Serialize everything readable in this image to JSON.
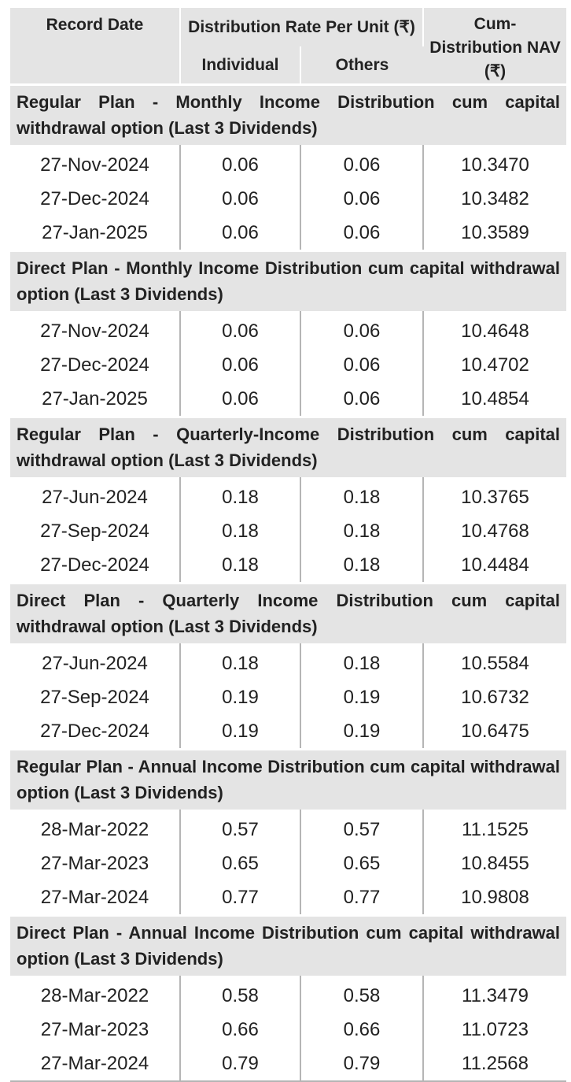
{
  "header": {
    "record_date": "Record Date",
    "rate": "Distribution Rate Per Unit (₹)",
    "individual": "Individual",
    "others": "Others",
    "nav": "Cum-Distribution NAV (₹)"
  },
  "sections": [
    {
      "title": "Regular Plan - Monthly Income Distribution cum capital withdrawal option (Last 3 Dividends)",
      "rows": [
        {
          "date": "27-Nov-2024",
          "individual": "0.06",
          "others": "0.06",
          "nav": "10.3470"
        },
        {
          "date": "27-Dec-2024",
          "individual": "0.06",
          "others": "0.06",
          "nav": "10.3482"
        },
        {
          "date": "27-Jan-2025",
          "individual": "0.06",
          "others": "0.06",
          "nav": "10.3589"
        }
      ]
    },
    {
      "title": "Direct Plan - Monthly Income Distribution cum capital withdrawal option (Last 3 Dividends)",
      "rows": [
        {
          "date": "27-Nov-2024",
          "individual": "0.06",
          "others": "0.06",
          "nav": "10.4648"
        },
        {
          "date": "27-Dec-2024",
          "individual": "0.06",
          "others": "0.06",
          "nav": "10.4702"
        },
        {
          "date": "27-Jan-2025",
          "individual": "0.06",
          "others": "0.06",
          "nav": "10.4854"
        }
      ]
    },
    {
      "title": "Regular Plan - Quarterly-Income Distribution cum capital withdrawal option (Last 3 Dividends)",
      "rows": [
        {
          "date": "27-Jun-2024",
          "individual": "0.18",
          "others": "0.18",
          "nav": "10.3765"
        },
        {
          "date": "27-Sep-2024",
          "individual": "0.18",
          "others": "0.18",
          "nav": "10.4768"
        },
        {
          "date": "27-Dec-2024",
          "individual": "0.18",
          "others": "0.18",
          "nav": "10.4484"
        }
      ]
    },
    {
      "title": "Direct Plan - Quarterly Income Distribution cum capital withdrawal option (Last 3 Dividends)",
      "rows": [
        {
          "date": "27-Jun-2024",
          "individual": "0.18",
          "others": "0.18",
          "nav": "10.5584"
        },
        {
          "date": "27-Sep-2024",
          "individual": "0.19",
          "others": "0.19",
          "nav": "10.6732"
        },
        {
          "date": "27-Dec-2024",
          "individual": "0.19",
          "others": "0.19",
          "nav": "10.6475"
        }
      ]
    },
    {
      "title": "Regular Plan - Annual Income Distribution cum capital withdrawal option (Last 3 Dividends)",
      "rows": [
        {
          "date": "28-Mar-2022",
          "individual": "0.57",
          "others": "0.57",
          "nav": "11.1525"
        },
        {
          "date": "27-Mar-2023",
          "individual": "0.65",
          "others": "0.65",
          "nav": "10.8455"
        },
        {
          "date": "27-Mar-2024",
          "individual": "0.77",
          "others": "0.77",
          "nav": "10.9808"
        }
      ]
    },
    {
      "title": "Direct Plan - Annual Income Distribution cum capital withdrawal option (Last 3 Dividends)",
      "rows": [
        {
          "date": "28-Mar-2022",
          "individual": "0.58",
          "others": "0.58",
          "nav": "11.3479"
        },
        {
          "date": "27-Mar-2023",
          "individual": "0.66",
          "others": "0.66",
          "nav": "11.0723"
        },
        {
          "date": "27-Mar-2024",
          "individual": "0.79",
          "others": "0.79",
          "nav": "11.2568"
        }
      ]
    }
  ],
  "colors": {
    "header_bg": "#e4e4e4",
    "rule": "#b5b5b5",
    "text": "#222222"
  }
}
